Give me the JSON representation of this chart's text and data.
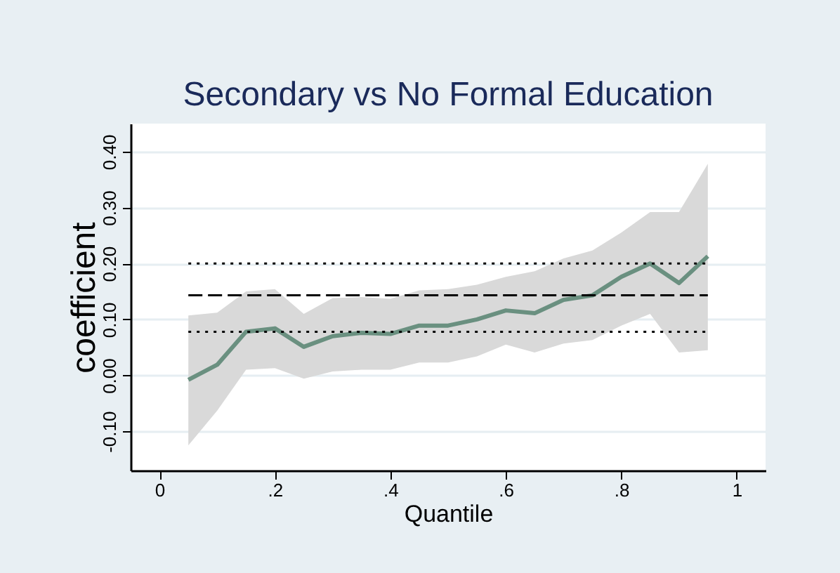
{
  "chart_data": {
    "type": "line",
    "title": "Secondary vs No Formal Education",
    "xlabel": "Quantile",
    "ylabel": "coefficient",
    "xlim": [
      -0.05,
      1.05
    ],
    "xticks": [
      0,
      {
        "value": 0.2,
        "label": ".2"
      },
      {
        "value": 0.4,
        "label": ".4"
      },
      {
        "value": 0.6,
        "label": ".6"
      },
      {
        "value": 0.8,
        "label": ".8"
      },
      1
    ],
    "ylim": [
      -0.17,
      0.45
    ],
    "yticks": [
      {
        "value": -0.1,
        "label": "-0.10"
      },
      {
        "value": 0,
        "label": "0.00"
      },
      {
        "value": 0.1,
        "label": "0.10"
      },
      {
        "value": 0.2,
        "label": "0.20"
      },
      {
        "value": 0.3,
        "label": "0.30"
      },
      {
        "value": 0.4,
        "label": "0.40"
      }
    ],
    "grid": "y",
    "x": [
      0.05,
      0.1,
      0.15,
      0.2,
      0.25,
      0.3,
      0.35,
      0.4,
      0.45,
      0.5,
      0.55,
      0.6,
      0.65,
      0.7,
      0.75,
      0.8,
      0.85,
      0.9,
      0.95
    ],
    "series": [
      {
        "color": "#6a9080",
        "line_style": "solid",
        "values": [
          -0.008,
          0.019,
          0.078,
          0.084,
          0.051,
          0.07,
          0.076,
          0.074,
          0.089,
          0.089,
          0.1,
          0.116,
          0.111,
          0.135,
          0.143,
          0.176,
          0.2,
          0.165,
          0.213
        ],
        "lower": [
          -0.125,
          -0.063,
          0.01,
          0.013,
          -0.006,
          0.007,
          0.01,
          0.01,
          0.023,
          0.023,
          0.034,
          0.055,
          0.041,
          0.057,
          0.063,
          0.089,
          0.11,
          0.041,
          0.045
        ],
        "upper": [
          0.107,
          0.112,
          0.15,
          0.154,
          0.11,
          0.138,
          0.14,
          0.137,
          0.152,
          0.154,
          0.162,
          0.176,
          0.186,
          0.209,
          0.223,
          0.255,
          0.292,
          0.292,
          0.378
        ]
      },
      {
        "color": "#000000",
        "line_style": "dashed",
        "values": [
          0.143,
          0.143,
          0.143,
          0.143,
          0.143,
          0.143,
          0.143,
          0.143,
          0.143,
          0.143,
          0.143,
          0.143,
          0.143,
          0.143,
          0.143,
          0.143,
          0.143,
          0.143,
          0.143
        ]
      },
      {
        "color": "#000000",
        "line_style": "dotted",
        "values": [
          0.2,
          0.2,
          0.2,
          0.2,
          0.2,
          0.2,
          0.2,
          0.2,
          0.2,
          0.2,
          0.2,
          0.2,
          0.2,
          0.2,
          0.2,
          0.2,
          0.2,
          0.2,
          0.2
        ]
      },
      {
        "color": "#000000",
        "line_style": "dotted",
        "values": [
          0.078,
          0.078,
          0.078,
          0.078,
          0.078,
          0.078,
          0.078,
          0.078,
          0.078,
          0.078,
          0.078,
          0.078,
          0.078,
          0.078,
          0.078,
          0.078,
          0.078,
          0.078,
          0.078
        ]
      }
    ]
  }
}
